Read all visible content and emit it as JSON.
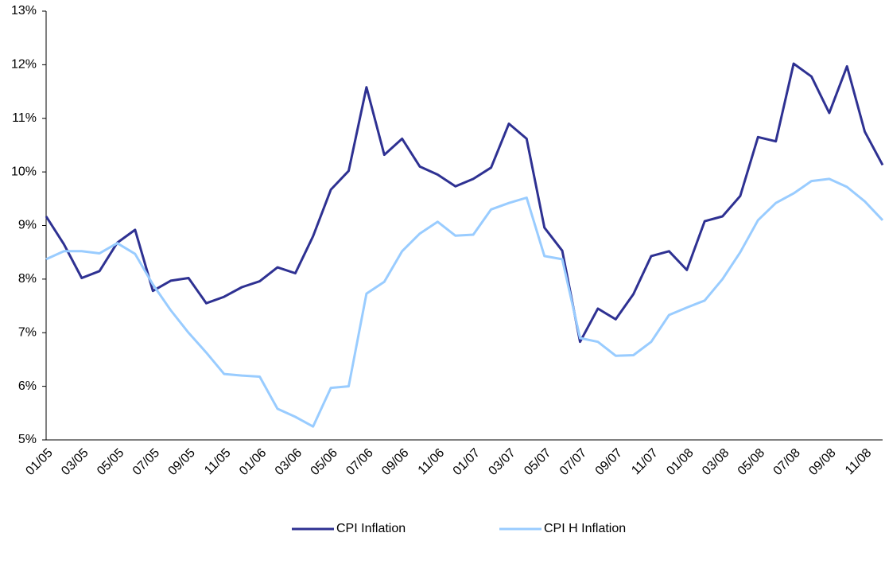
{
  "chart_data": {
    "type": "line",
    "categories": [
      "01/05",
      null,
      "03/05",
      null,
      "05/05",
      null,
      "07/05",
      null,
      "09/05",
      null,
      "11/05",
      null,
      "01/06",
      null,
      "03/06",
      null,
      "05/06",
      null,
      "07/06",
      null,
      "09/06",
      null,
      "11/06",
      null,
      "01/07",
      null,
      "03/07",
      null,
      "05/07",
      null,
      "07/07",
      null,
      "09/07",
      null,
      "11/07",
      null,
      "01/08",
      null,
      "03/08",
      null,
      "05/08",
      null,
      "07/08",
      null,
      "09/08",
      null,
      "11/08",
      null
    ],
    "series": [
      {
        "name": "CPI Inflation",
        "color": "#2e3192",
        "values": [
          9.17,
          8.65,
          8.02,
          8.15,
          8.68,
          8.92,
          7.78,
          7.97,
          8.02,
          7.55,
          7.67,
          7.85,
          7.96,
          8.22,
          8.11,
          8.8,
          9.67,
          10.02,
          11.58,
          10.32,
          10.62,
          10.1,
          9.95,
          9.73,
          9.87,
          10.08,
          10.9,
          10.62,
          8.96,
          8.53,
          6.83,
          7.45,
          7.25,
          7.72,
          8.43,
          8.52,
          8.17,
          9.08,
          9.17,
          9.55,
          10.65,
          10.57,
          12.02,
          11.78,
          11.1,
          11.97,
          10.75,
          10.13
        ]
      },
      {
        "name": "CPI H Inflation",
        "color": "#99ccff",
        "values": [
          8.37,
          8.52,
          8.52,
          8.48,
          8.67,
          8.47,
          7.9,
          7.42,
          7.0,
          6.63,
          6.23,
          6.2,
          6.18,
          5.58,
          5.43,
          5.25,
          5.97,
          6.0,
          7.73,
          7.95,
          8.52,
          8.85,
          9.07,
          8.81,
          8.83,
          9.3,
          9.42,
          9.52,
          8.43,
          8.37,
          6.9,
          6.83,
          6.57,
          6.58,
          6.83,
          7.33,
          7.47,
          7.6,
          8.0,
          8.5,
          9.1,
          9.42,
          9.6,
          9.83,
          9.87,
          9.72,
          9.45,
          9.1
        ]
      }
    ],
    "ylim": [
      5,
      13
    ],
    "yticks": [
      {
        "value": 5,
        "label": "5%"
      },
      {
        "value": 6,
        "label": "6%"
      },
      {
        "value": 7,
        "label": "7%"
      },
      {
        "value": 8,
        "label": "8%"
      },
      {
        "value": 9,
        "label": "9%"
      },
      {
        "value": 10,
        "label": "10%"
      },
      {
        "value": 11,
        "label": "11%"
      },
      {
        "value": 12,
        "label": "12%"
      },
      {
        "value": 13,
        "label": "13%"
      }
    ],
    "legend": "bottom"
  }
}
